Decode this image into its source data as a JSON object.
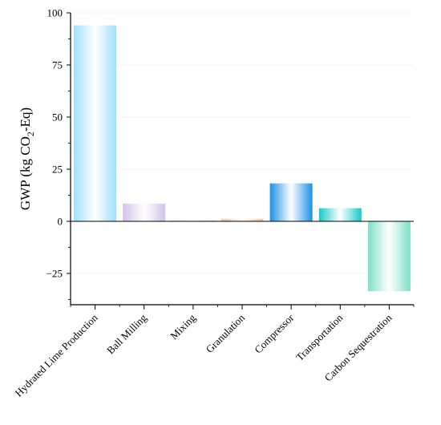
{
  "chart_data": {
    "type": "bar",
    "title": "",
    "xlabel": "",
    "ylabel": "GWP (kg CO",
    "ylabel_sub": "2",
    "ylabel_tail": "-Eq)",
    "categories": [
      "Hydrated Lime Production",
      "Ball Milling",
      "Mixing",
      "Granulation",
      "Compressor",
      "Transportation",
      "Carbon Sequestration"
    ],
    "values": [
      94,
      8.5,
      0.4,
      1.2,
      18.2,
      6.3,
      -33.5
    ],
    "colors": [
      "#9fe0f7",
      "#cfc3ea",
      "#f3c9a8",
      "#f6c1a4",
      "#1e90e6",
      "#19c8c8",
      "#7ee0c7"
    ],
    "ylim": [
      -40,
      100
    ],
    "yticks": [
      -25,
      0,
      25,
      50,
      75,
      100
    ],
    "ytick_labels": [
      "−25",
      "0",
      "25",
      "50",
      "75",
      "100"
    ],
    "grid": true
  }
}
